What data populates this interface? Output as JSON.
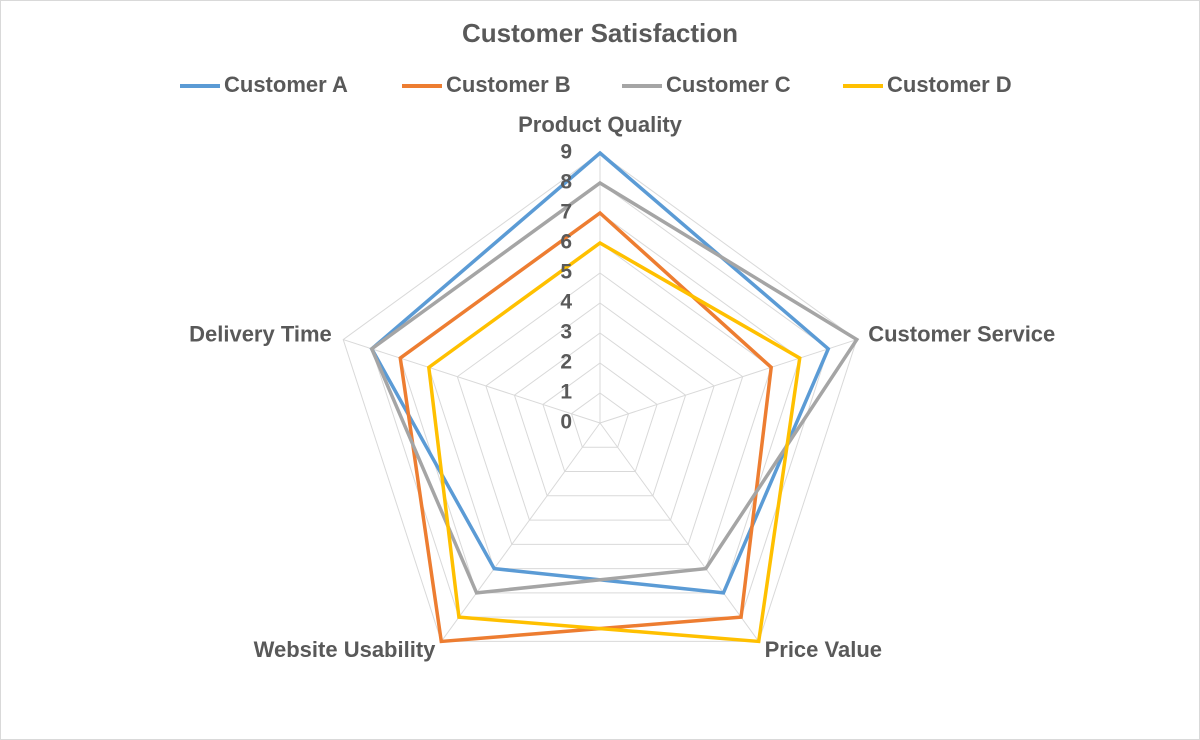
{
  "chart_data": {
    "type": "radar",
    "title": "Customer Satisfaction",
    "categories": [
      "Product Quality",
      "Customer Service",
      "Price Value",
      "Website Usability",
      "Delivery Time"
    ],
    "series": [
      {
        "name": "Customer A",
        "color": "#5b9bd5",
        "values": [
          9,
          8,
          7,
          6,
          8
        ]
      },
      {
        "name": "Customer B",
        "color": "#ed7d31",
        "values": [
          7,
          6,
          8,
          9,
          7
        ]
      },
      {
        "name": "Customer C",
        "color": "#a5a5a5",
        "values": [
          8,
          9,
          6,
          7,
          8
        ]
      },
      {
        "name": "Customer D",
        "color": "#ffc000",
        "values": [
          6,
          7,
          9,
          8,
          6
        ]
      }
    ],
    "ylim": [
      0,
      9
    ],
    "yticks": [
      0,
      1,
      2,
      3,
      4,
      5,
      6,
      7,
      8,
      9
    ],
    "grid": true,
    "legend": "top"
  }
}
